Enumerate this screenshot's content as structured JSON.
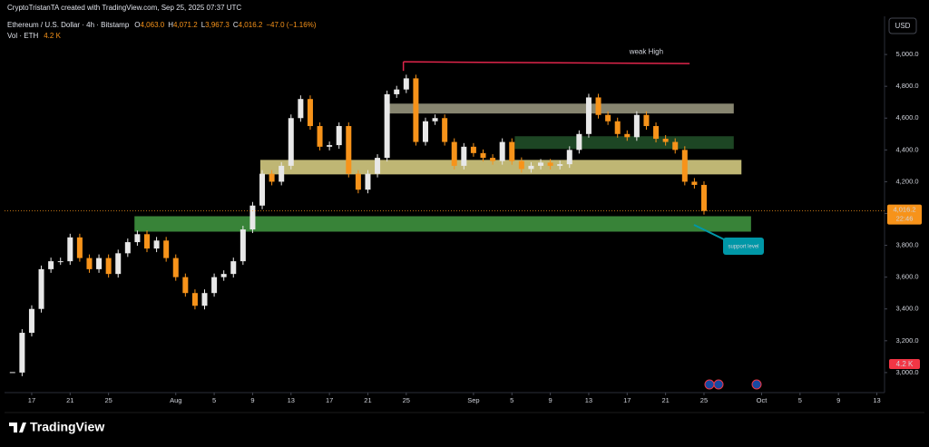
{
  "chart_data": {
    "type": "candlestick",
    "credit": "CryptoTristanTA created with TradingView.com, Sep 25, 2025 07:37 UTC",
    "symbol": "Ethereum / U.S. Dollar · 4h · Bitstamp",
    "ohlc": [
      {
        "key": "O",
        "value": "4,063.0"
      },
      {
        "key": "H",
        "value": "4,071.2"
      },
      {
        "key": "L",
        "value": "3,967.3"
      },
      {
        "key": "C",
        "value": "4,016.2"
      }
    ],
    "change": "−47.0 (−1.16%)",
    "volume_title": "Vol · ETH",
    "volume_value": "4.2 K",
    "currency": "USD",
    "x": [
      -2,
      -1,
      0,
      1,
      2,
      3,
      4,
      5,
      6,
      7,
      8,
      9,
      10,
      11,
      12,
      13,
      14,
      15,
      16,
      17,
      18,
      19,
      20,
      21,
      22,
      23,
      24,
      25,
      26,
      27,
      28,
      29,
      30,
      31,
      32,
      33,
      34,
      35,
      36,
      37,
      38,
      39,
      40,
      41,
      42,
      43,
      44,
      45,
      46,
      47,
      48,
      49,
      50,
      51,
      52,
      53,
      54,
      55,
      56,
      57,
      58,
      59,
      60,
      61,
      62,
      63,
      64,
      65,
      66,
      67,
      68,
      69,
      70
    ],
    "values": [
      3000,
      3250,
      3400,
      3650,
      3700,
      3700,
      3850,
      3720,
      3650,
      3720,
      3620,
      3750,
      3820,
      3870,
      3780,
      3830,
      3720,
      3600,
      3500,
      3420,
      3500,
      3600,
      3620,
      3700,
      3900,
      4050,
      4250,
      4200,
      4300,
      4600,
      4720,
      4550,
      4420,
      4430,
      4550,
      4250,
      4150,
      4250,
      4350,
      4750,
      4780,
      4850,
      4450,
      4580,
      4600,
      4450,
      4300,
      4420,
      4380,
      4350,
      4330,
      4450,
      4330,
      4280,
      4300,
      4320,
      4300,
      4310,
      4400,
      4500,
      4730,
      4620,
      4580,
      4500,
      4480,
      4620,
      4550,
      4470,
      4450,
      4400,
      4200,
      4180,
      4016.2
    ],
    "up_color": "#e8e8e8",
    "down_color": "#f7931a",
    "last_price": {
      "value": 4016.2,
      "label": "4,016.2"
    },
    "countdown": "22:46",
    "zones": [
      {
        "price": [
          3886,
          3983
        ],
        "x": [
          10.7,
          74.9
        ],
        "color": "#3b8a3b"
      },
      {
        "price": [
          4246,
          4337
        ],
        "x": [
          23.8,
          73.9
        ],
        "color": "#c9c07a"
      },
      {
        "price": [
          4629,
          4691
        ],
        "x": [
          36.8,
          73.1
        ],
        "color": "#8e8c76"
      },
      {
        "price": [
          4406,
          4486
        ],
        "x": [
          50.3,
          73.1
        ],
        "color": "#1f4a26"
      }
    ],
    "weak_high": {
      "label": "weak High",
      "price": 4954,
      "x": [
        38.7,
        68.5
      ],
      "color": "#e0254b"
    },
    "support_label": "support level",
    "xlim": [
      -2.83,
      88.8
    ],
    "ylim": [
      2874,
      5240
    ],
    "yticks": [
      {
        "value": 3000,
        "label": "3,000.0"
      },
      {
        "value": 3200,
        "label": "3,200.0"
      },
      {
        "value": 3400,
        "label": "3,400.0"
      },
      {
        "value": 3600,
        "label": "3,600.0"
      },
      {
        "value": 3800,
        "label": "3,800.0"
      },
      {
        "value": 4000,
        "label": "4,000.0"
      },
      {
        "value": 4200,
        "label": "4,200.0"
      },
      {
        "value": 4400,
        "label": "4,400.0"
      },
      {
        "value": 4600,
        "label": "4,600.0"
      },
      {
        "value": 4800,
        "label": "4,800.0"
      },
      {
        "value": 5000,
        "label": "5,000.0"
      }
    ],
    "xticks": [
      {
        "value": 0,
        "label": "17"
      },
      {
        "value": 4,
        "label": "21"
      },
      {
        "value": 8,
        "label": "25"
      },
      {
        "value": 15,
        "label": "Aug"
      },
      {
        "value": 19,
        "label": "5"
      },
      {
        "value": 23,
        "label": "9"
      },
      {
        "value": 27,
        "label": "13"
      },
      {
        "value": 31,
        "label": "17"
      },
      {
        "value": 35,
        "label": "21"
      },
      {
        "value": 39,
        "label": "25"
      },
      {
        "value": 46,
        "label": "Sep"
      },
      {
        "value": 50,
        "label": "5"
      },
      {
        "value": 54,
        "label": "9"
      },
      {
        "value": 58,
        "label": "13"
      },
      {
        "value": 62,
        "label": "17"
      },
      {
        "value": 66,
        "label": "21"
      },
      {
        "value": 70,
        "label": "25"
      },
      {
        "value": 76,
        "label": "Oct"
      },
      {
        "value": 80,
        "label": "5"
      },
      {
        "value": 84,
        "label": "9"
      },
      {
        "value": 88,
        "label": "13"
      }
    ],
    "grid": false,
    "footer_brand": "TradingView"
  }
}
